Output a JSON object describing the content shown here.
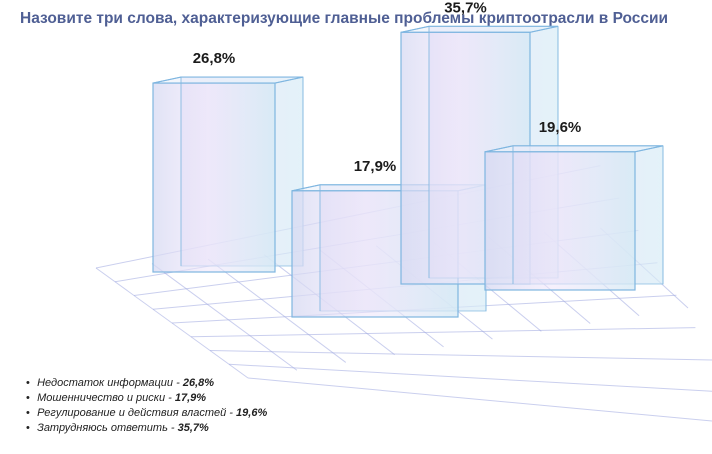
{
  "title": "Назовите три слова, характеризующие главные проблемы криптоотрасли в России",
  "chart_data": {
    "type": "bar",
    "categories": [
      "Недостаток информации",
      "Мошенничество и риски",
      "Регулирование и действия властей",
      "Затрудняюсь ответить"
    ],
    "values": [
      26.8,
      17.9,
      19.6,
      35.7
    ],
    "value_labels": [
      "26,8%",
      "17,9%",
      "19,6%",
      "35,7%"
    ],
    "unit": "%",
    "grid": true,
    "style": "3d-boxes"
  },
  "legend": [
    {
      "label": "Недостаток информации -",
      "value": "26,8%"
    },
    {
      "label": "Мошенничество и риски -",
      "value": "17,9%"
    },
    {
      "label": " Регулирование и действия властей -",
      "value": "19,6%"
    },
    {
      "label": "Затрудняюсь ответить -",
      "value": "35,7%"
    }
  ],
  "colors": {
    "title": "#4f5f94",
    "grid": "#9fa8e0",
    "box_edge": "#7fb6e0",
    "box_fill_start": "#dcdcf5",
    "box_fill_mid": "#f0e6fa",
    "box_fill_end": "#d8ecf5"
  }
}
